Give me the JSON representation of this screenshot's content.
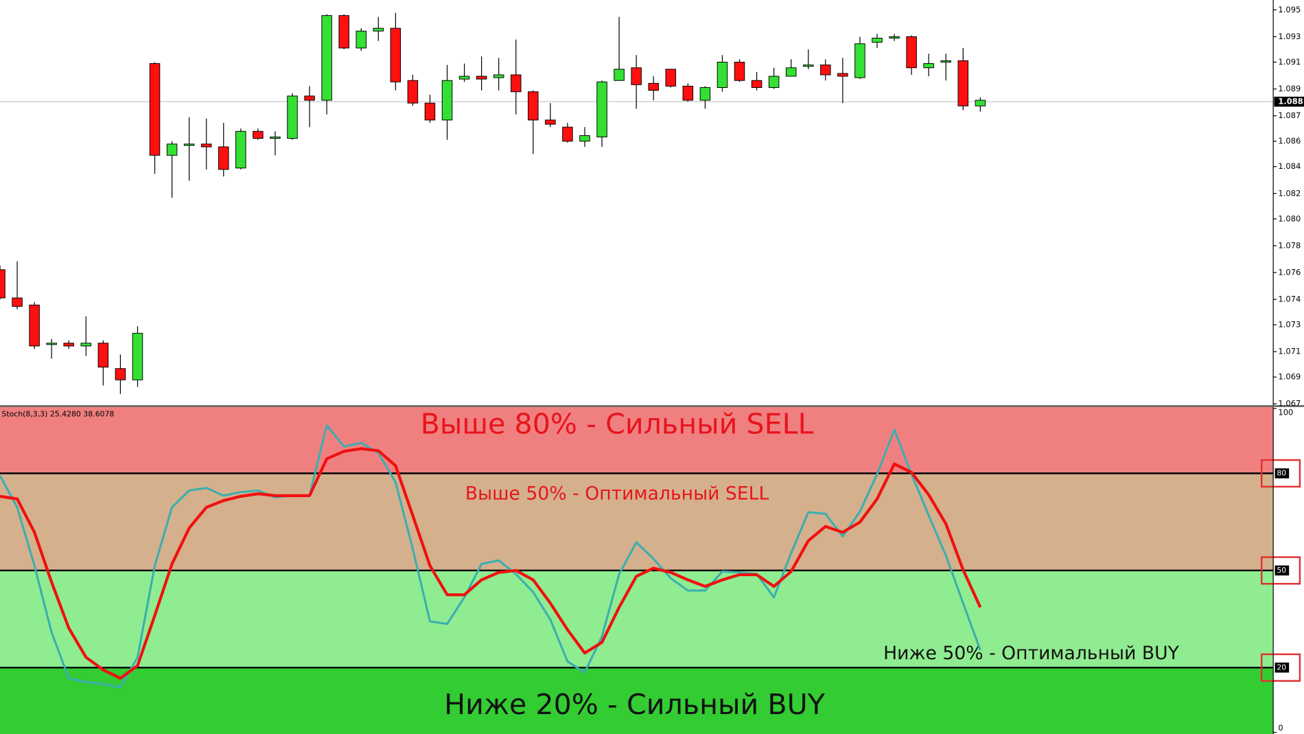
{
  "chart_data": [
    {
      "type": "candlestick",
      "up_color": "#33e033",
      "down_color": "#ff1010",
      "open": [
        1.0765,
        1.0745,
        1.074,
        1.0712,
        1.0713,
        1.0711,
        1.0713,
        1.0695,
        1.0687,
        1.0911,
        1.0846,
        1.0853,
        1.0854,
        1.0852,
        1.0837,
        1.0863,
        1.0858,
        1.0858,
        1.0888,
        1.0885,
        1.0945,
        1.0922,
        1.0934,
        1.0936,
        1.0899,
        1.0883,
        1.0871,
        1.09,
        1.0902,
        1.0901,
        1.0903,
        1.0891,
        1.0871,
        1.0866,
        1.0856,
        1.0859,
        1.0899,
        1.0908,
        1.0897,
        1.0907,
        1.0895,
        1.0885,
        1.0894,
        1.0912,
        1.0899,
        1.0894,
        1.0902,
        1.0909,
        1.091,
        1.0904,
        1.0901,
        1.0926,
        1.0929,
        1.093,
        1.0908,
        1.0912,
        1.0913,
        1.0881
      ],
      "high": [
        1.0768,
        1.0771,
        1.0742,
        1.0716,
        1.0715,
        1.0732,
        1.0715,
        1.0705,
        1.0725,
        1.0912,
        1.0856,
        1.0873,
        1.0872,
        1.0869,
        1.0865,
        1.0865,
        1.0863,
        1.089,
        1.0895,
        1.0946,
        1.0946,
        1.0936,
        1.0944,
        1.0947,
        1.0903,
        1.0889,
        1.091,
        1.0911,
        1.0916,
        1.0915,
        1.0928,
        1.0892,
        1.0883,
        1.0869,
        1.0866,
        1.0899,
        1.0944,
        1.0917,
        1.0902,
        1.0907,
        1.0897,
        1.0895,
        1.0917,
        1.0914,
        1.0905,
        1.0908,
        1.0914,
        1.0921,
        1.0914,
        1.0915,
        1.093,
        1.0932,
        1.0932,
        1.0931,
        1.0918,
        1.0918,
        1.0922,
        1.0887
      ],
      "low": [
        1.0744,
        1.0737,
        1.0709,
        1.0702,
        1.0709,
        1.0704,
        1.0683,
        1.0677,
        1.0682,
        1.0833,
        1.0816,
        1.0828,
        1.0836,
        1.0831,
        1.0836,
        1.0857,
        1.0846,
        1.0857,
        1.0866,
        1.0875,
        1.0921,
        1.092,
        1.0927,
        1.0892,
        1.0881,
        1.0869,
        1.0857,
        1.0898,
        1.0892,
        1.0892,
        1.0875,
        1.0847,
        1.0866,
        1.0855,
        1.0852,
        1.0852,
        1.0899,
        1.0879,
        1.0885,
        1.0894,
        1.0884,
        1.0879,
        1.0891,
        1.0898,
        1.0892,
        1.0893,
        1.0902,
        1.0907,
        1.0899,
        1.0883,
        1.09,
        1.0922,
        1.0927,
        1.0903,
        1.0902,
        1.0899,
        1.0878,
        1.0877
      ],
      "close": [
        1.0745,
        1.0739,
        1.0711,
        1.0713,
        1.0711,
        1.0713,
        1.0696,
        1.0687,
        1.072,
        1.0846,
        1.0854,
        1.0854,
        1.0852,
        1.0836,
        1.0863,
        1.0858,
        1.0859,
        1.0888,
        1.0885,
        1.0945,
        1.0922,
        1.0934,
        1.0936,
        1.0898,
        1.0883,
        1.0871,
        1.0899,
        1.0902,
        1.09,
        1.0903,
        1.0891,
        1.0871,
        1.0868,
        1.0856,
        1.086,
        1.0898,
        1.0907,
        1.0896,
        1.0892,
        1.0895,
        1.0885,
        1.0894,
        1.0912,
        1.0899,
        1.0894,
        1.0902,
        1.0908,
        1.091,
        1.0903,
        1.0902,
        1.0925,
        1.0929,
        1.093,
        1.0908,
        1.0911,
        1.0913,
        1.0881,
        1.0885
      ],
      "ylim": [
        1.0669,
        1.0956
      ],
      "yticks": [
        {
          "value": 1.067,
          "label": "1.067"
        },
        {
          "value": 1.0689,
          "label": "1.069"
        },
        {
          "value": 1.0707,
          "label": "1.071"
        },
        {
          "value": 1.0726,
          "label": "1.073"
        },
        {
          "value": 1.0744,
          "label": "1.074"
        },
        {
          "value": 1.0763,
          "label": "1.076"
        },
        {
          "value": 1.0782,
          "label": "1.078"
        },
        {
          "value": 1.0801,
          "label": "1.080"
        },
        {
          "value": 1.0819,
          "label": "1.082"
        },
        {
          "value": 1.0838,
          "label": "1.084"
        },
        {
          "value": 1.0856,
          "label": "1.086"
        },
        {
          "value": 1.0874,
          "label": "1.087"
        },
        {
          "value": 1.0893,
          "label": "1.089"
        },
        {
          "value": 1.0912,
          "label": "1.091"
        },
        {
          "value": 1.093,
          "label": "1.093"
        },
        {
          "value": 1.0949,
          "label": "1.095"
        }
      ],
      "current_price": {
        "value": 1.0884,
        "label": "1.088"
      }
    },
    {
      "type": "line",
      "title": "Stoch(8,3,3) 25.4280 38.6078",
      "series": [
        {
          "color": "#3aaeb0",
          "values": [
            79.3,
            69.5,
            51.5,
            30.9,
            16.7,
            15.5,
            14.9,
            13.9,
            23.2,
            51.5,
            69.5,
            74.7,
            75.5,
            73.1,
            74.2,
            74.7,
            72.6,
            73.1,
            73.1,
            94.8,
            88.3,
            89.4,
            86.3,
            77.3,
            56.7,
            34.3,
            33.5,
            41.7,
            52.0,
            53.1,
            48.9,
            43.3,
            34.8,
            21.9,
            18.5,
            29.6,
            48.9,
            58.7,
            53.6,
            47.6,
            43.8,
            43.8,
            49.7,
            49.4,
            48.9,
            41.7,
            55.4,
            68.0,
            67.5,
            60.5,
            68.2,
            79.8,
            93.5,
            79.8,
            67.0,
            54.6,
            39.9,
            25.4
          ]
        },
        {
          "color": "#f01010",
          "values": [
            72.9,
            72.1,
            61.8,
            46.4,
            32.2,
            23.2,
            19.3,
            16.7,
            20.6,
            36.1,
            52.0,
            63.1,
            69.5,
            71.6,
            72.9,
            73.7,
            73.1,
            73.1,
            73.1,
            84.5,
            86.8,
            87.6,
            87.0,
            82.4,
            67.0,
            51.5,
            42.5,
            42.5,
            47.1,
            49.4,
            50.0,
            47.1,
            39.9,
            31.7,
            24.5,
            27.8,
            38.6,
            48.2,
            50.7,
            49.4,
            47.1,
            45.1,
            47.1,
            48.7,
            48.7,
            45.1,
            49.7,
            59.2,
            63.6,
            61.8,
            64.9,
            72.1,
            82.9,
            80.3,
            73.4,
            64.4,
            50.2,
            38.6
          ]
        }
      ],
      "ylim": [
        0,
        100
      ],
      "yticks": [
        0,
        20,
        50,
        80,
        100
      ],
      "zones": [
        {
          "range": [
            80,
            100
          ],
          "color": "#f08080",
          "label": "Выше 80% - Сильный SELL",
          "label_color": "#e8141c"
        },
        {
          "range": [
            50,
            80
          ],
          "color": "#d4b08c",
          "label": "Выше 50% -  Оптимальный SELL",
          "label_color": "#e8141c"
        },
        {
          "range": [
            20,
            50
          ],
          "color": "#90ec90",
          "label": "Ниже 50% -  Оптимальный BUY",
          "label_color": "#111111"
        },
        {
          "range": [
            0,
            20
          ],
          "color": "#33cc33",
          "label": "Ниже 20% - Сильный BUY",
          "label_color": "#111111"
        }
      ]
    }
  ]
}
